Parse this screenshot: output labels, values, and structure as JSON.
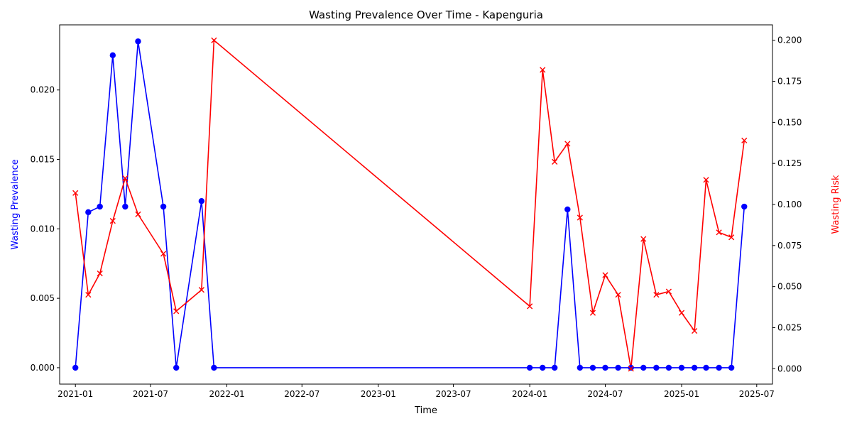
{
  "chart_data": {
    "type": "line",
    "title": "Wasting Prevalence Over Time - Kapenguria",
    "xlabel": "Time",
    "ylabel_left": "Wasting Prevalence",
    "ylabel_right": "Wasting Risk",
    "xlim": [
      "2020-11-24",
      "2025-08-08"
    ],
    "ylim_left": [
      -0.00118,
      0.02469
    ],
    "ylim_right": [
      -0.0094,
      0.2094
    ],
    "x_ticks": [
      "2021-01",
      "2021-07",
      "2022-01",
      "2022-07",
      "2023-01",
      "2023-07",
      "2024-01",
      "2024-07",
      "2025-01",
      "2025-07"
    ],
    "y_ticks_left": [
      "0.000",
      "0.005",
      "0.010",
      "0.015",
      "0.020"
    ],
    "y_ticks_right": [
      "0.000",
      "0.025",
      "0.050",
      "0.075",
      "0.100",
      "0.125",
      "0.150",
      "0.175",
      "0.200"
    ],
    "grid": false,
    "colors": {
      "prevalence": "#0000ff",
      "risk": "#ff0000"
    },
    "series": [
      {
        "axis": "left",
        "marker": "circle",
        "color": "#0000ff",
        "x": [
          "2021-01-01",
          "2021-02-01",
          "2021-03-01",
          "2021-04-01",
          "2021-05-01",
          "2021-06-01",
          "2021-08-01",
          "2021-09-01",
          "2021-11-01",
          "2021-12-01",
          "2024-01-01",
          "2024-02-01",
          "2024-03-01",
          "2024-04-01",
          "2024-05-01",
          "2024-06-01",
          "2024-07-01",
          "2024-08-01",
          "2024-09-01",
          "2024-10-01",
          "2024-11-01",
          "2024-12-01",
          "2025-01-01",
          "2025-02-01",
          "2025-03-01",
          "2025-04-01",
          "2025-05-01",
          "2025-06-01"
        ],
        "values": [
          0.0,
          0.0112,
          0.0116,
          0.0225,
          0.0116,
          0.0235,
          0.0116,
          0.0,
          0.012,
          0.0,
          0.0,
          0.0,
          0.0,
          0.0114,
          0.0,
          0.0,
          0.0,
          0.0,
          0.0,
          0.0,
          0.0,
          0.0,
          0.0,
          0.0,
          0.0,
          0.0,
          0.0,
          0.0116
        ]
      },
      {
        "axis": "right",
        "marker": "x",
        "color": "#ff0000",
        "x": [
          "2021-01-01",
          "2021-02-01",
          "2021-03-01",
          "2021-04-01",
          "2021-05-01",
          "2021-06-01",
          "2021-08-01",
          "2021-09-01",
          "2021-11-01",
          "2021-12-01",
          "2024-01-01",
          "2024-02-01",
          "2024-03-01",
          "2024-04-01",
          "2024-05-01",
          "2024-06-01",
          "2024-07-01",
          "2024-08-01",
          "2024-09-01",
          "2024-10-01",
          "2024-11-01",
          "2024-12-01",
          "2025-01-01",
          "2025-02-01",
          "2025-03-01",
          "2025-04-01",
          "2025-05-01",
          "2025-06-01"
        ],
        "values": [
          0.107,
          0.045,
          0.058,
          0.09,
          0.116,
          0.094,
          0.07,
          0.035,
          0.048,
          0.2,
          0.038,
          0.182,
          0.126,
          0.137,
          0.092,
          0.034,
          0.057,
          0.045,
          0.0,
          0.079,
          0.045,
          0.047,
          0.034,
          0.023,
          0.115,
          0.083,
          0.08,
          0.139
        ]
      }
    ]
  }
}
